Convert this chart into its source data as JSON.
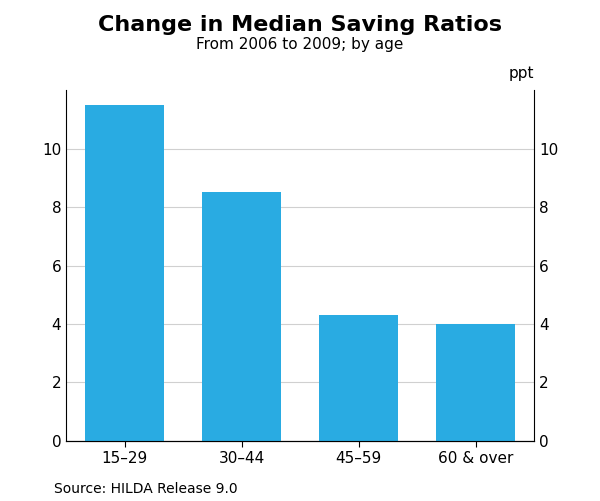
{
  "title": "Change in Median Saving Ratios",
  "subtitle": "From 2006 to 2009; by age",
  "categories": [
    "15–29",
    "30–44",
    "45–59",
    "60 & over"
  ],
  "values": [
    11.5,
    8.5,
    4.3,
    4.0
  ],
  "bar_color": "#29ABE2",
  "ylim": [
    0,
    12
  ],
  "yticks": [
    0,
    2,
    4,
    6,
    8,
    10
  ],
  "ylabel": "ppt",
  "source": "Source: HILDA Release 9.0",
  "title_fontsize": 16,
  "subtitle_fontsize": 11,
  "tick_fontsize": 11,
  "label_fontsize": 11,
  "source_fontsize": 10,
  "background_color": "#ffffff",
  "grid_color": "#d0d0d0",
  "bar_width": 0.68
}
